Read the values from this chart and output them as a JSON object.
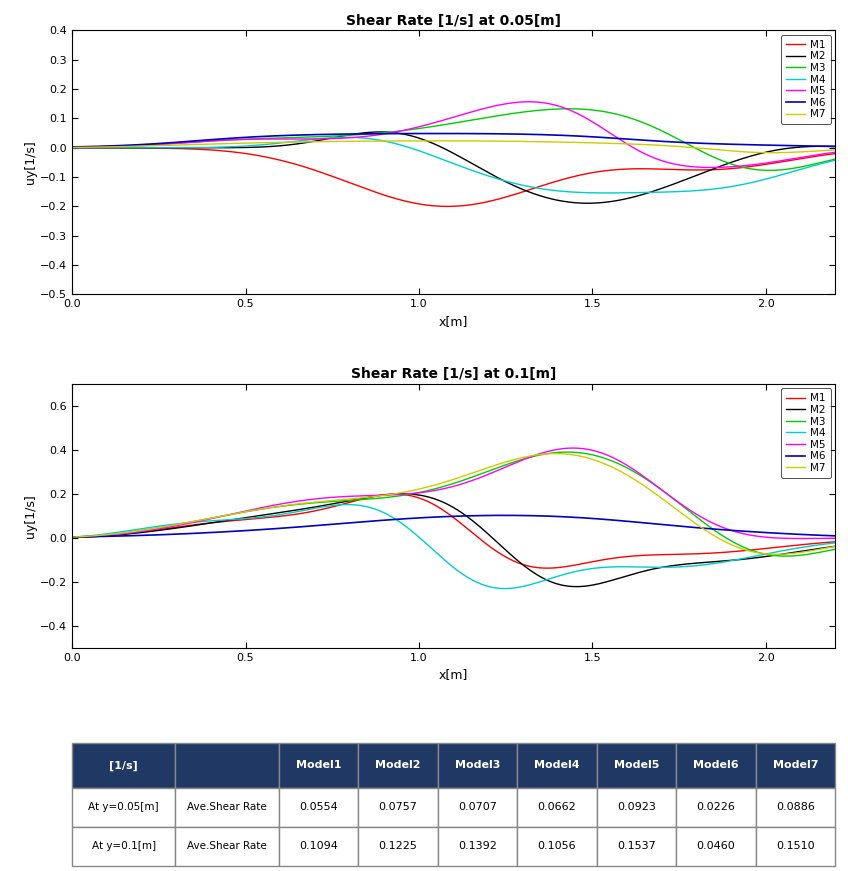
{
  "title1": "Shear Rate [1/s] at 0.05[m]",
  "title2": "Shear Rate [1/s] at 0.1[m]",
  "xlabel": "x[m]",
  "ylabel": "uy[1/s]",
  "xlim": [
    0,
    2.2
  ],
  "ylim1": [
    -0.5,
    0.4
  ],
  "ylim2": [
    -0.5,
    0.7
  ],
  "yticks1": [
    -0.5,
    -0.4,
    -0.3,
    -0.2,
    -0.1,
    0.0,
    0.1,
    0.2,
    0.3,
    0.4
  ],
  "yticks2": [
    -0.4,
    -0.2,
    0.0,
    0.2,
    0.4,
    0.6
  ],
  "xticks": [
    0,
    0.5,
    1.0,
    1.5,
    2.0
  ],
  "colors": {
    "M1": "#ff0000",
    "M2": "#000000",
    "M3": "#00cc00",
    "M4": "#00cccc",
    "M5": "#ff00ff",
    "M6": "#0000bb",
    "M7": "#cccc00"
  },
  "table_header_bg": "#1f3864",
  "table_header_text": "#ffffff",
  "col_labels": [
    "[1/s]",
    "",
    "Model1",
    "Model2",
    "Model3",
    "Model4",
    "Model5",
    "Model6",
    "Model7"
  ],
  "row1": [
    "At y=0.05[m]",
    "Ave.Shear Rate",
    "0.0554",
    "0.0757",
    "0.0707",
    "0.0662",
    "0.0923",
    "0.0226",
    "0.0886"
  ],
  "row2": [
    "At y=0.1[m]",
    "Ave.Shear Rate",
    "0.1094",
    "0.1225",
    "0.1392",
    "0.1056",
    "0.1537",
    "0.0460",
    "0.1510"
  ]
}
